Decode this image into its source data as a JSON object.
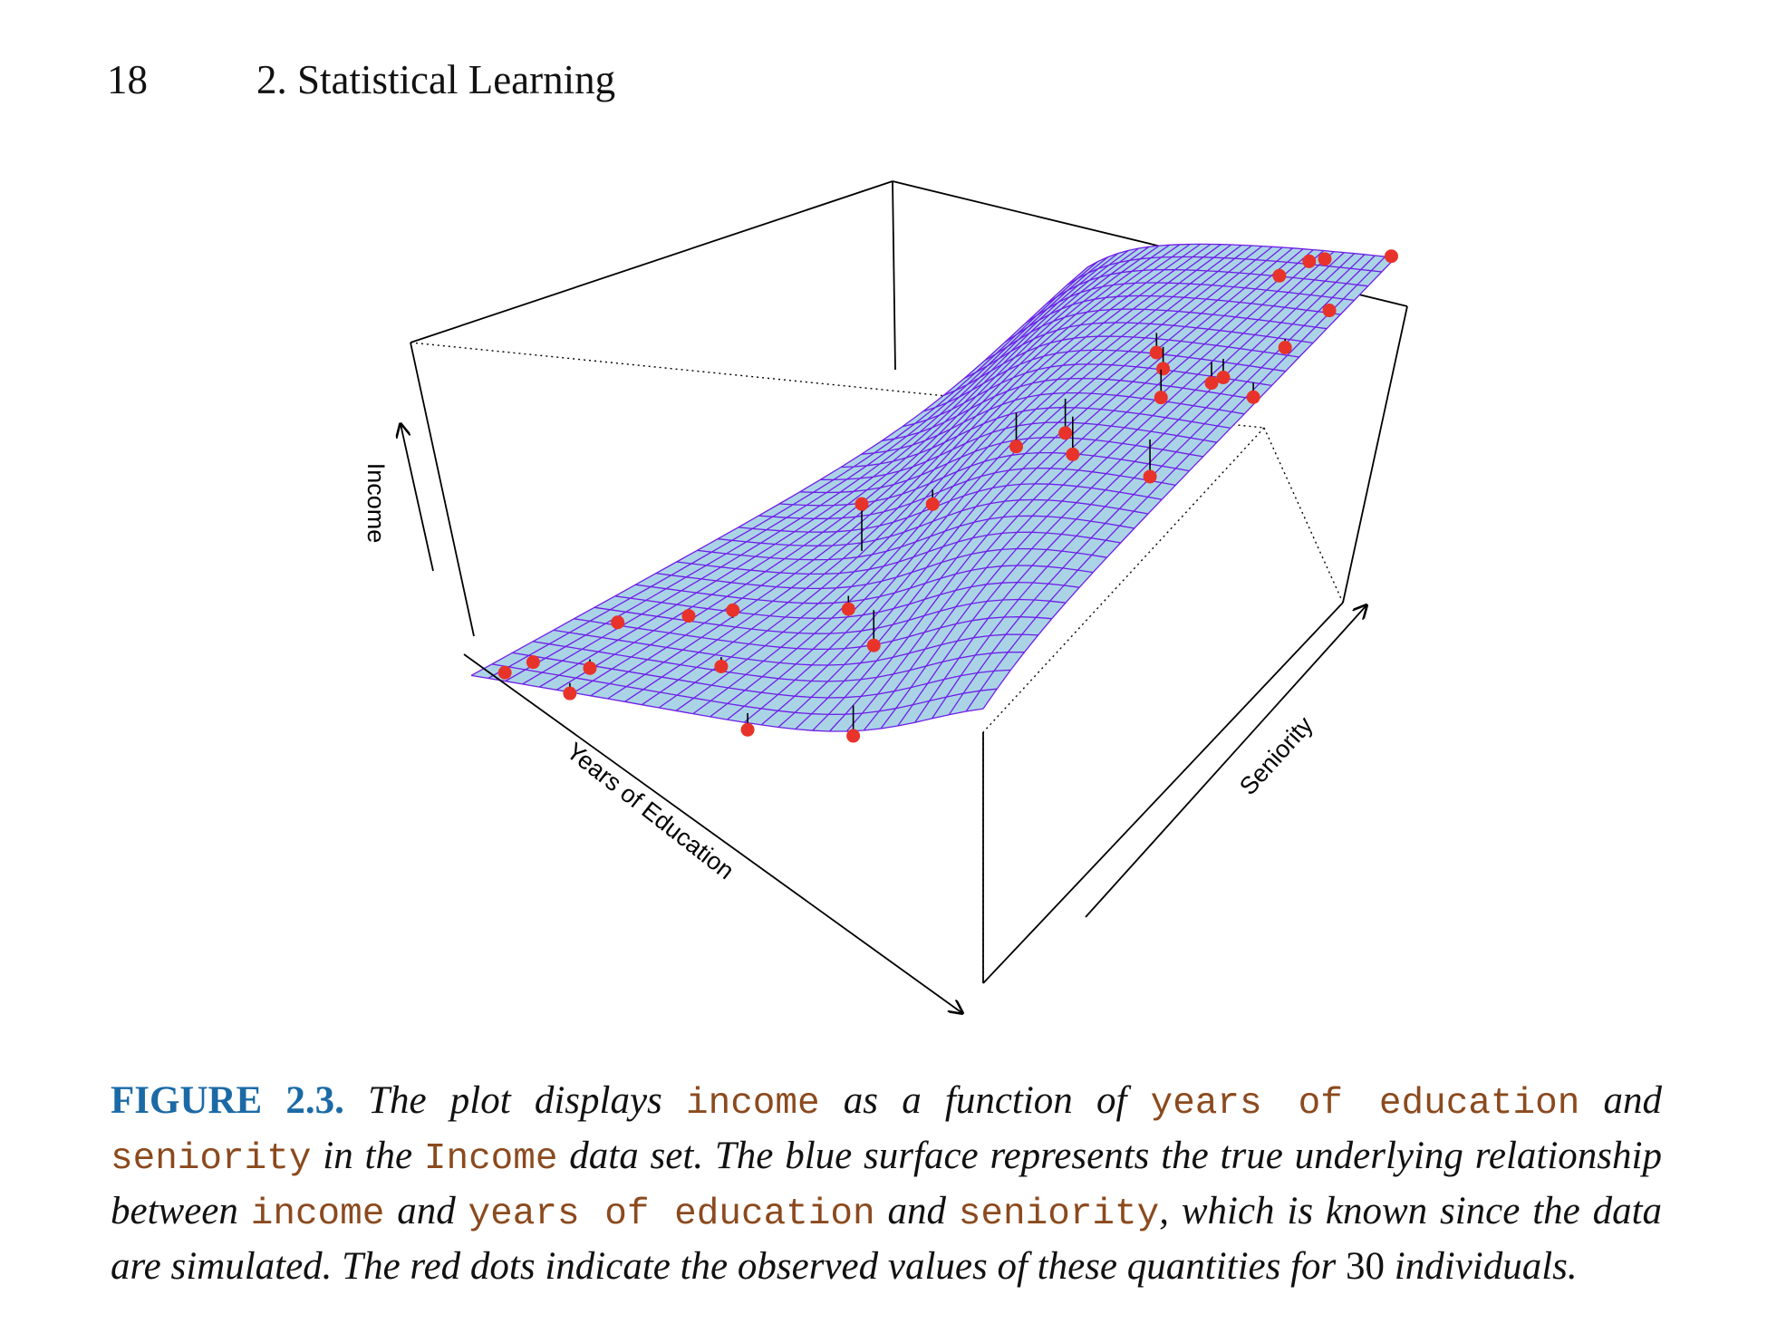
{
  "header": {
    "page_number": "18",
    "section": "2. Statistical Learning"
  },
  "chart_data": {
    "type": "3d-surface-scatter",
    "axes": {
      "x": "Years of Education",
      "y": "Seniority",
      "z": "Income"
    },
    "surface": {
      "color": "#aad4e6",
      "grid_color": "#6f1ee8"
    },
    "points": {
      "count": 30,
      "color": "#e8332b",
      "values": [
        {
          "education": 0.05,
          "seniority": 0.06,
          "income": 0.06
        },
        {
          "education": 0.03,
          "seniority": 0.03,
          "income": 0.04
        },
        {
          "education": 0.1,
          "seniority": 0.16,
          "income": 0.15
        },
        {
          "education": 0.14,
          "seniority": 0.08,
          "income": 0.02
        },
        {
          "education": 0.17,
          "seniority": 0.02,
          "income": 0.01
        },
        {
          "education": 0.2,
          "seniority": 0.2,
          "income": 0.16
        },
        {
          "education": 0.27,
          "seniority": 0.22,
          "income": 0.2
        },
        {
          "education": 0.35,
          "seniority": 0.13,
          "income": 0.05
        },
        {
          "education": 0.36,
          "seniority": 0.38,
          "income": 0.7
        },
        {
          "education": 0.4,
          "seniority": 0.48,
          "income": 0.38
        },
        {
          "education": 0.45,
          "seniority": 0.28,
          "income": 0.14
        },
        {
          "education": 0.55,
          "seniority": 0.24,
          "income": 0.02
        },
        {
          "education": 0.52,
          "seniority": 0.02,
          "income": 0.0
        },
        {
          "education": 0.7,
          "seniority": 0.05,
          "income": 0.0
        },
        {
          "education": 0.45,
          "seniority": 0.6,
          "income": 0.52
        },
        {
          "education": 0.55,
          "seniority": 0.62,
          "income": 0.62
        },
        {
          "education": 0.62,
          "seniority": 0.58,
          "income": 0.6
        },
        {
          "education": 0.58,
          "seniority": 0.78,
          "income": 0.8
        },
        {
          "education": 0.64,
          "seniority": 0.75,
          "income": 0.78
        },
        {
          "education": 0.7,
          "seniority": 0.7,
          "income": 0.72
        },
        {
          "education": 0.8,
          "seniority": 0.73,
          "income": 0.78
        },
        {
          "education": 0.82,
          "seniority": 0.74,
          "income": 0.8
        },
        {
          "education": 0.85,
          "seniority": 0.55,
          "income": 0.62
        },
        {
          "education": 0.7,
          "seniority": 0.95,
          "income": 0.92
        },
        {
          "education": 0.75,
          "seniority": 0.98,
          "income": 0.95
        },
        {
          "education": 0.8,
          "seniority": 0.98,
          "income": 0.98
        },
        {
          "education": 0.92,
          "seniority": 0.8,
          "income": 0.88
        },
        {
          "education": 0.95,
          "seniority": 0.7,
          "income": 0.82
        },
        {
          "education": 0.95,
          "seniority": 0.88,
          "income": 0.92
        },
        {
          "education": 1.0,
          "seniority": 0.99,
          "income": 1.0
        }
      ]
    }
  },
  "caption": {
    "label": "FIGURE 2.3.",
    "t1": " The plot displays ",
    "c1": "income",
    "t2": " as a function of ",
    "c2": "years of education",
    "t3": " and ",
    "c3": "seniority",
    "t4": " in the ",
    "c4": "Income",
    "t5": " data set. The blue surface represents the true underlying relationship between ",
    "c5": "income",
    "t6": " and ",
    "c6": "years of education",
    "t7": " and ",
    "c7": "seniority",
    "t8": ", which is known since the data are simulated. The red dots indicate the observed values of these quantities for ",
    "n": "30",
    "t9": " individuals."
  }
}
